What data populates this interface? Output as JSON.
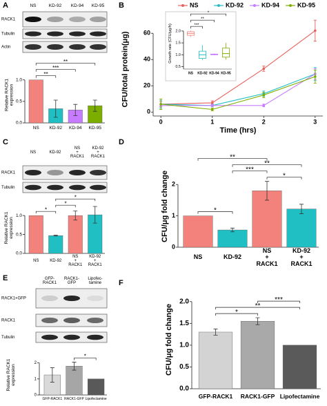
{
  "panel_labels": [
    "A",
    "B",
    "C",
    "D",
    "E",
    "F"
  ],
  "blots": [
    {
      "lanes": [
        "NS",
        "KD-92",
        "KD-94",
        "KD-95"
      ],
      "rows": [
        "RACK1",
        "Tubulin",
        "Actin"
      ]
    },
    {
      "lanes": [
        "NS",
        "KD-92",
        "NS\n+\nRACK1",
        "KD-92\n+\nRACK1"
      ],
      "rows": [
        "RACK1",
        "Tubulin"
      ]
    },
    {
      "lanes": [
        "GFP-\nRACK1",
        "RACK1-\nGFP",
        "Lipofec-\ntamine"
      ],
      "rows": [
        "RACK1+GFP",
        "RACK1",
        "Tubulin"
      ]
    }
  ],
  "chart_data": [
    {
      "type": "bar",
      "ylabel": "Relative RACK1\nexpression",
      "categories": [
        "NS",
        "KD-92",
        "KD-94",
        "KD-95"
      ],
      "values": [
        1.0,
        0.33,
        0.3,
        0.4
      ],
      "errors": [
        null,
        0.2,
        0.13,
        0.13
      ],
      "colors": [
        "#f4827c",
        "#1fbfc3",
        "#c77cff",
        "#7cae00"
      ],
      "ylim": [
        0,
        1.3
      ],
      "yticks": [
        {
          "value": 0,
          "label": "0.0"
        },
        {
          "value": 0.5,
          "label": "0.5"
        },
        {
          "value": 1,
          "label": "1.0"
        }
      ],
      "comparisons": [
        {
          "groups": [
            "NS",
            "KD-92"
          ],
          "label": "**"
        },
        {
          "groups": [
            "NS",
            "KD-94"
          ],
          "label": "***"
        },
        {
          "groups": [
            "NS",
            "KD-95"
          ],
          "label": "**"
        }
      ]
    },
    {
      "type": "line",
      "xlabel": "Time (hrs)",
      "ylabel": "CFU/total protein(μg)",
      "x": [
        0,
        1,
        2,
        3
      ],
      "xlim": [
        -0.15,
        3.15
      ],
      "xticks": [
        0,
        1,
        2,
        3
      ],
      "ylim": [
        -3,
        68
      ],
      "yticks": [
        0,
        20,
        40,
        60
      ],
      "series": [
        {
          "name": "NS",
          "color": "#e8605a",
          "values": [
            6,
            7,
            33,
            62
          ],
          "errors": [
            2,
            1.5,
            2,
            8
          ]
        },
        {
          "name": "KD-92",
          "color": "#1fbfc3",
          "values": [
            6,
            5,
            14,
            29
          ],
          "errors": [
            3,
            1,
            2,
            5
          ]
        },
        {
          "name": "KD-94",
          "color": "#c77cff",
          "values": [
            5,
            5,
            5,
            29
          ],
          "errors": [
            1,
            1,
            1,
            4
          ]
        },
        {
          "name": "KD-95",
          "color": "#7cae00",
          "values": [
            6,
            2,
            13,
            27
          ],
          "errors": [
            4,
            1,
            2,
            5
          ]
        }
      ]
    },
    {
      "type": "box",
      "ylabel": "Growth rate (CFU/μg/h)",
      "categories": [
        "NS",
        "KD-92",
        "KD-94",
        "KD-95"
      ],
      "colors": [
        "#f4827c",
        "#1fbfc3",
        "#c77cff",
        "#7cae00"
      ],
      "boxes": [
        {
          "min": 1.75,
          "q1": 1.82,
          "median": 1.9,
          "q3": 1.97,
          "max": 2.02
        },
        {
          "min": 0.78,
          "q1": 0.85,
          "median": 1.0,
          "q3": 1.15,
          "max": 1.4
        },
        {
          "min": 0.98,
          "q1": 1.0,
          "median": 1.02,
          "q3": 1.03,
          "max": 1.05
        },
        {
          "min": 0.8,
          "q1": 0.9,
          "median": 1.05,
          "q3": 1.28,
          "max": 1.5
        }
      ],
      "ylim": [
        0.4,
        2.2
      ],
      "yticks": [
        {
          "value": 0.5,
          "label": "0.5"
        },
        {
          "value": 1,
          "label": "1.0"
        },
        {
          "value": 1.5,
          "label": "1.5"
        },
        {
          "value": 2,
          "label": "2.0"
        }
      ],
      "comparisons": [
        {
          "groups": [
            "NS",
            "KD-92"
          ],
          "label": "***"
        },
        {
          "groups": [
            "NS",
            "KD-94"
          ],
          "label": "**"
        },
        {
          "groups": [
            "NS",
            "KD-95"
          ],
          "label": "*"
        }
      ]
    },
    {
      "type": "bar",
      "ylabel": "Relative RACK1\nexpression",
      "categories": [
        "NS",
        "KD-92",
        "NS\n+\nRACK1",
        "KD-92\n+\nRACK1"
      ],
      "values": [
        1.0,
        0.47,
        1.0,
        1.02
      ],
      "errors": [
        null,
        0.01,
        0.12,
        0.22
      ],
      "colors": [
        "#f4827c",
        "#1fbfc3",
        "#f4827c",
        "#1fbfc3"
      ],
      "ylim": [
        0,
        1.35
      ],
      "yticks": [
        {
          "value": 0,
          "label": "0.0"
        },
        {
          "value": 0.5,
          "label": "0.5"
        },
        {
          "value": 1,
          "label": "1.0"
        }
      ],
      "comparisons": [
        {
          "groups": [
            "NS",
            "KD-92"
          ],
          "label": "*"
        },
        {
          "groups": [
            "KD-92",
            "NS\n+\nRACK1"
          ],
          "label": "*"
        },
        {
          "groups": [
            "KD-92",
            "KD-92\n+\nRACK1"
          ],
          "label": "*"
        }
      ]
    },
    {
      "type": "bar",
      "ylabel": "CFU/μg fold change",
      "categories": [
        "NS",
        "KD-92",
        "NS\n+\nRACK1",
        "KD-92\n+\nRACK1"
      ],
      "values": [
        1.0,
        0.55,
        1.8,
        1.22
      ],
      "errors": [
        null,
        0.06,
        0.3,
        0.15
      ],
      "colors": [
        "#f4827c",
        "#1fbfc3",
        "#f4827c",
        "#1fbfc3"
      ],
      "ylim": [
        0,
        2.6
      ],
      "yticks": [
        0,
        1,
        2
      ],
      "comparisons": [
        {
          "groups": [
            "NS",
            "KD-92"
          ],
          "label": "*"
        },
        {
          "groups": [
            "NS\n+\nRACK1",
            "KD-92\n+\nRACK1"
          ],
          "label": "*"
        },
        {
          "groups": [
            "KD-92",
            "NS\n+\nRACK1"
          ],
          "label": "***"
        },
        {
          "groups": [
            "KD-92",
            "KD-92\n+\nRACK1"
          ],
          "label": "**"
        },
        {
          "groups": [
            "NS",
            "NS\n+\nRACK1"
          ],
          "label": "**"
        }
      ]
    },
    {
      "type": "bar",
      "ylabel": "Relative RACK1\nexpression",
      "categories": [
        "GFP-RACK1",
        "RACK1-GFP",
        "Lipofectamine"
      ],
      "values": [
        1.25,
        1.8,
        1.0
      ],
      "errors": [
        0.45,
        0.25,
        null
      ],
      "colors": [
        "#d9d9d9",
        "#a6a6a6",
        "#595959"
      ],
      "ylim": [
        0,
        2.5
      ],
      "yticks": [
        0,
        1,
        2
      ],
      "comparisons": [
        {
          "groups": [
            "RACK1-GFP",
            "Lipofectamine"
          ],
          "label": "*"
        }
      ]
    },
    {
      "type": "bar",
      "ylabel": "CFU/μg fold change",
      "categories": [
        "GFP-RACK1",
        "RACK1-GFP",
        "Lipofectamine"
      ],
      "values": [
        1.3,
        1.55,
        1.0
      ],
      "errors": [
        0.07,
        0.08,
        null
      ],
      "colors": [
        "#d3d3d3",
        "#a9a9a9",
        "#5a5a5a"
      ],
      "ylim": [
        0,
        2.25
      ],
      "yticks": [
        {
          "value": 0,
          "label": "0.0"
        },
        {
          "value": 0.5,
          "label": "0.5"
        },
        {
          "value": 1,
          "label": "1.0"
        },
        {
          "value": 1.5,
          "label": "1.5"
        },
        {
          "value": 2,
          "label": "2.0"
        }
      ],
      "comparisons": [
        {
          "groups": [
            "GFP-RACK1",
            "RACK1-GFP"
          ],
          "label": "*"
        },
        {
          "groups": [
            "GFP-RACK1",
            "Lipofectamine"
          ],
          "label": "**"
        },
        {
          "groups": [
            "RACK1-GFP",
            "Lipofectamine"
          ],
          "label": "***"
        }
      ]
    }
  ]
}
